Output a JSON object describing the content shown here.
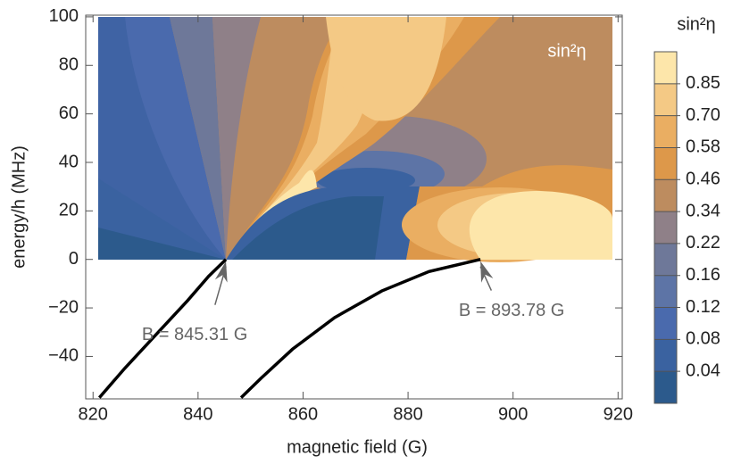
{
  "chart_data": {
    "type": "contour",
    "xlabel": "magnetic field (G)",
    "ylabel": "energy/h (MHz)",
    "plot_label": "sin²η",
    "xlim": [
      818.6,
      920.8
    ],
    "ylim": [
      -57.5,
      100.7
    ],
    "xticks": [
      820,
      840,
      860,
      880,
      900,
      920
    ],
    "yticks": [
      {
        "value": -40,
        "label": "−40"
      },
      {
        "value": -20,
        "label": "−20"
      },
      0,
      20,
      40,
      60,
      80,
      100
    ],
    "series": [
      {
        "color": "#000000",
        "x": [
          821.2,
          826,
          832,
          838,
          842,
          845.31
        ],
        "values": [
          -57,
          -45,
          -31,
          -17,
          -7,
          0
        ]
      },
      {
        "color": "#000000",
        "x": [
          848.2,
          852,
          858,
          866,
          875,
          884,
          893.78
        ],
        "values": [
          -57,
          -49,
          -37,
          -24,
          -13,
          -5,
          0
        ]
      }
    ],
    "annotations": [
      {
        "text": "B = 845.31 G",
        "x": 845.31,
        "y": 0
      },
      {
        "text": "B = 893.78 G",
        "x": 893.78,
        "y": 0
      }
    ],
    "colorbar": {
      "title": "sin²η",
      "colors": [
        "#2c5a8c",
        "#3a62a0",
        "#4a6aad",
        "#5d74a6",
        "#6e7899",
        "#8f8088",
        "#bd8c5f",
        "#dd984a",
        "#eaae62",
        "#f4c985",
        "#fde6aa"
      ],
      "ticks": [
        0.04,
        0.08,
        0.12,
        0.16,
        0.22,
        0.34,
        0.46,
        0.58,
        {
          "value": 0.7,
          "label": "0.70"
        },
        0.85
      ]
    }
  }
}
